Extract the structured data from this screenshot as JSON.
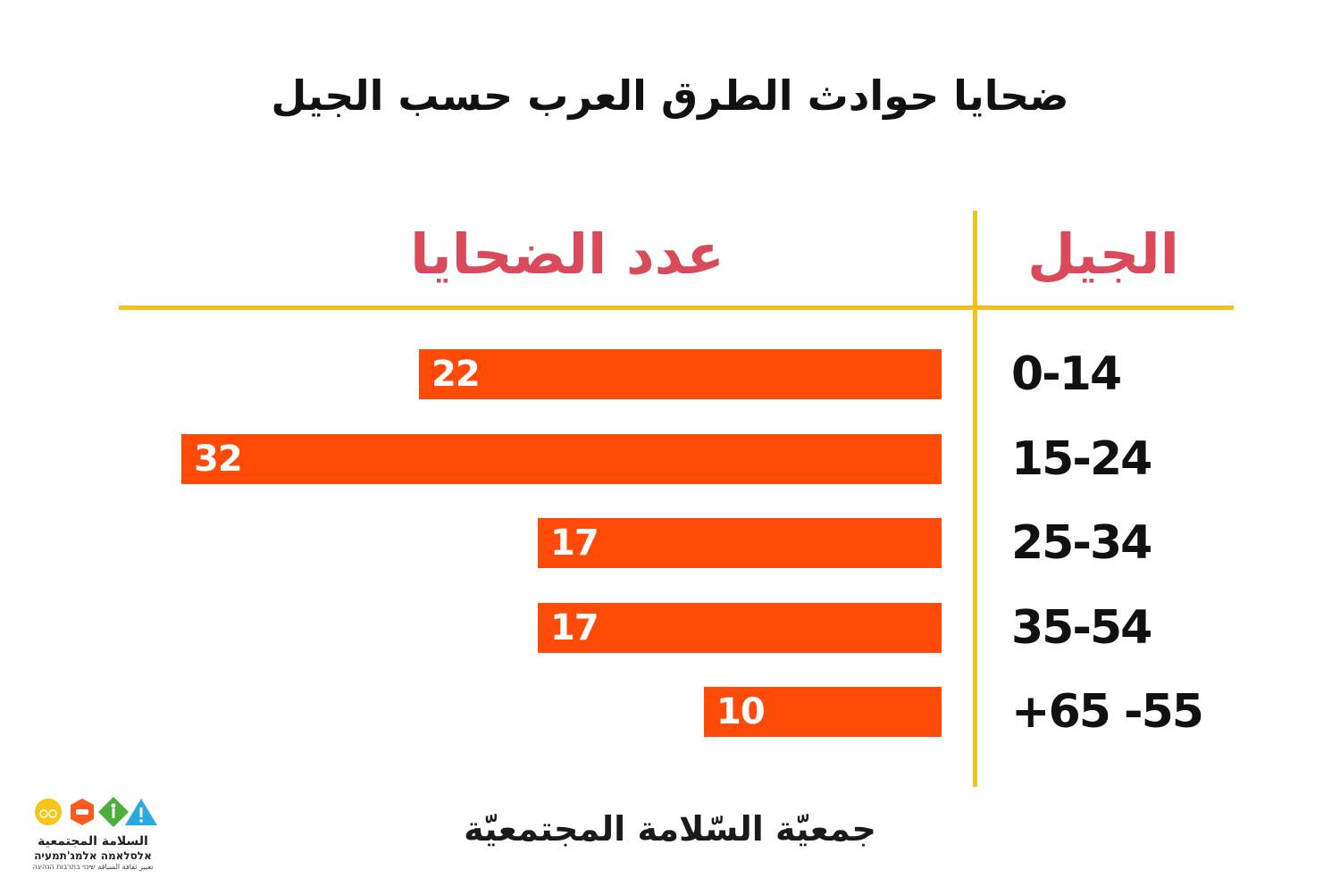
{
  "colors": {
    "bar": "#ff4a08",
    "header": "#d94a5a",
    "rule": "#f2c21c"
  },
  "chart_data": {
    "type": "bar",
    "orientation": "horizontal",
    "title": "ضحايا حوادث الطرق العرب حسب الجيل",
    "category_header": "الجيل",
    "value_header": "عدد الضحايا",
    "categories": [
      "0-14",
      "15-24",
      "25-34",
      "35-54",
      "+65 -55"
    ],
    "values": [
      22,
      32,
      17,
      17,
      10
    ]
  },
  "footer": {
    "organization": "جمعيّة السّلامة المجتمعيّة"
  },
  "logo": {
    "name_ar": "السلامة المجتمعية",
    "name_he": "אלסלאמה אלמג'תמעיה",
    "tagline": "تغيير ثقافة السياقة שינוי בתרבות הנהיגה",
    "icons": [
      "bicycle-icon",
      "car-icon",
      "pedestrian-icon",
      "warning-icon"
    ]
  }
}
